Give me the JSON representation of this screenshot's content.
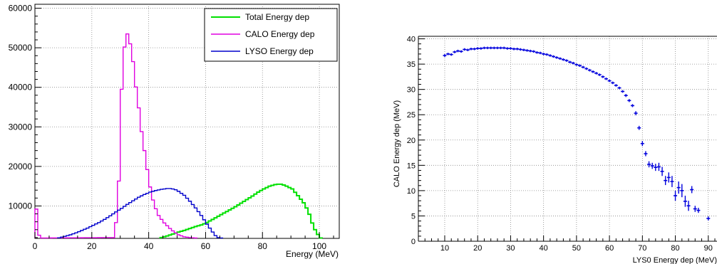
{
  "colors": {
    "total": "#00e000",
    "calo": "#e000e0",
    "lyso": "#0000cc",
    "profile": "#0000dd"
  },
  "chart_data": [
    {
      "type": "histogram-step",
      "xlabel": "Energy (MeV)",
      "ylabel": "",
      "xlim": [
        0,
        107
      ],
      "ylim": [
        1800,
        61000
      ],
      "xticks": [
        0,
        20,
        40,
        60,
        80,
        100
      ],
      "yticks": [
        10000,
        20000,
        30000,
        40000,
        50000,
        60000
      ],
      "ytick_labels": [
        "10000",
        "20000",
        "30000",
        "40000",
        "50000",
        "60000"
      ],
      "grid": true,
      "legend_position": "top-right",
      "bin_width": 1,
      "series": [
        {
          "name": "Total Energy dep",
          "key": "total",
          "x": [
            44,
            46,
            48,
            50,
            52,
            54,
            56,
            58,
            60,
            62,
            64,
            66,
            68,
            70,
            72,
            74,
            76,
            78,
            80,
            82,
            84,
            85,
            86,
            87,
            88,
            90,
            92,
            94,
            95,
            96,
            97,
            98,
            99,
            100
          ],
          "y": [
            2000,
            2400,
            2900,
            3400,
            3800,
            4300,
            4800,
            5200,
            5800,
            6600,
            7400,
            8200,
            9000,
            9800,
            10700,
            11600,
            12500,
            13500,
            14300,
            15000,
            15400,
            15500,
            15500,
            15300,
            15000,
            14300,
            12600,
            10800,
            9500,
            7900,
            5700,
            4000,
            2800,
            1900
          ]
        },
        {
          "name": "CALO Energy dep",
          "key": "calo",
          "x": [
            0,
            1,
            2,
            27,
            28,
            29,
            30,
            31,
            32,
            33,
            34,
            35,
            36,
            37,
            38,
            39,
            40,
            41,
            42,
            43,
            44,
            45,
            46,
            47,
            48,
            49,
            50,
            52,
            54,
            56
          ],
          "y": [
            9200,
            2600,
            1900,
            2000,
            5800,
            16300,
            39500,
            50200,
            53500,
            51000,
            46500,
            40100,
            34800,
            28800,
            24000,
            19200,
            14800,
            11500,
            9300,
            7600,
            6600,
            5700,
            5000,
            4300,
            3700,
            3200,
            2700,
            2200,
            2000,
            1900
          ]
        },
        {
          "name": "LYSO Energy dep",
          "key": "lyso",
          "x": [
            8,
            10,
            12,
            14,
            16,
            18,
            20,
            22,
            24,
            26,
            28,
            30,
            32,
            34,
            36,
            38,
            40,
            42,
            44,
            46,
            47,
            48,
            49,
            50,
            52,
            54,
            56,
            58,
            60,
            62,
            63,
            64,
            65
          ],
          "y": [
            1950,
            2300,
            2700,
            3200,
            3800,
            4400,
            5100,
            5800,
            6600,
            7500,
            8500,
            9400,
            10400,
            11300,
            12200,
            12900,
            13500,
            13900,
            14200,
            14400,
            14400,
            14300,
            14100,
            13700,
            12700,
            11200,
            9500,
            7600,
            5400,
            3400,
            2500,
            2000,
            1900
          ]
        }
      ]
    },
    {
      "type": "scatter-errorbars",
      "xlabel": "LYS0 Energy dep (MeV)",
      "ylabel": "CALO Energy dep (MeV)",
      "xlim": [
        2,
        100
      ],
      "ylim": [
        0,
        40.5
      ],
      "xticks": [
        10,
        20,
        30,
        40,
        50,
        60,
        70,
        80,
        90
      ],
      "yticks": [
        0,
        5,
        10,
        15,
        20,
        25,
        30,
        35,
        40
      ],
      "grid": true,
      "points": [
        [
          10,
          36.7,
          0.3
        ],
        [
          11,
          37.0,
          0.2
        ],
        [
          12,
          36.9,
          0.2
        ],
        [
          13,
          37.4,
          0.2
        ],
        [
          14,
          37.6,
          0.2
        ],
        [
          15,
          37.5,
          0.2
        ],
        [
          16,
          37.9,
          0.2
        ],
        [
          17,
          37.8,
          0.2
        ],
        [
          18,
          38.0,
          0.1
        ],
        [
          19,
          38.0,
          0.1
        ],
        [
          20,
          38.1,
          0.1
        ],
        [
          21,
          38.1,
          0.1
        ],
        [
          22,
          38.2,
          0.1
        ],
        [
          23,
          38.2,
          0.1
        ],
        [
          24,
          38.2,
          0.1
        ],
        [
          25,
          38.2,
          0.1
        ],
        [
          26,
          38.2,
          0.1
        ],
        [
          27,
          38.2,
          0.1
        ],
        [
          28,
          38.2,
          0.1
        ],
        [
          29,
          38.1,
          0.1
        ],
        [
          30,
          38.1,
          0.1
        ],
        [
          31,
          38.0,
          0.1
        ],
        [
          32,
          38.0,
          0.1
        ],
        [
          33,
          37.9,
          0.1
        ],
        [
          34,
          37.8,
          0.1
        ],
        [
          35,
          37.7,
          0.1
        ],
        [
          36,
          37.6,
          0.1
        ],
        [
          37,
          37.5,
          0.1
        ],
        [
          38,
          37.3,
          0.1
        ],
        [
          39,
          37.2,
          0.1
        ],
        [
          40,
          37.0,
          0.1
        ],
        [
          41,
          36.9,
          0.1
        ],
        [
          42,
          36.7,
          0.1
        ],
        [
          43,
          36.5,
          0.1
        ],
        [
          44,
          36.3,
          0.1
        ],
        [
          45,
          36.1,
          0.1
        ],
        [
          46,
          35.9,
          0.1
        ],
        [
          47,
          35.7,
          0.1
        ],
        [
          48,
          35.4,
          0.1
        ],
        [
          49,
          35.2,
          0.1
        ],
        [
          50,
          34.9,
          0.1
        ],
        [
          51,
          34.7,
          0.1
        ],
        [
          52,
          34.4,
          0.1
        ],
        [
          53,
          34.1,
          0.1
        ],
        [
          54,
          33.8,
          0.1
        ],
        [
          55,
          33.5,
          0.1
        ],
        [
          56,
          33.2,
          0.1
        ],
        [
          57,
          32.9,
          0.1
        ],
        [
          58,
          32.5,
          0.1
        ],
        [
          59,
          32.1,
          0.1
        ],
        [
          60,
          31.7,
          0.1
        ],
        [
          61,
          31.3,
          0.1
        ],
        [
          62,
          30.8,
          0.2
        ],
        [
          63,
          30.3,
          0.2
        ],
        [
          64,
          29.6,
          0.2
        ],
        [
          65,
          28.8,
          0.3
        ],
        [
          66,
          27.8,
          0.3
        ],
        [
          67,
          26.8,
          0.3
        ],
        [
          68,
          25.3,
          0.4
        ],
        [
          69,
          22.4,
          0.4
        ],
        [
          70,
          19.3,
          0.5
        ],
        [
          71,
          17.3,
          0.5
        ],
        [
          72,
          15.2,
          0.6
        ],
        [
          73,
          14.9,
          0.6
        ],
        [
          74,
          14.6,
          0.7
        ],
        [
          75,
          14.7,
          0.8
        ],
        [
          76,
          13.8,
          0.9
        ],
        [
          77,
          12.0,
          0.9
        ],
        [
          78,
          12.6,
          1.0
        ],
        [
          79,
          11.8,
          1.1
        ],
        [
          80,
          9.0,
          1.0
        ],
        [
          81,
          10.6,
          1.2
        ],
        [
          82,
          10.0,
          1.3
        ],
        [
          83,
          7.9,
          1.1
        ],
        [
          84,
          7.0,
          1.0
        ],
        [
          85,
          10.2,
          0.7
        ],
        [
          86,
          6.4,
          0.6
        ],
        [
          87,
          6.1,
          0.5
        ],
        [
          90,
          4.5,
          0.4
        ]
      ]
    }
  ]
}
